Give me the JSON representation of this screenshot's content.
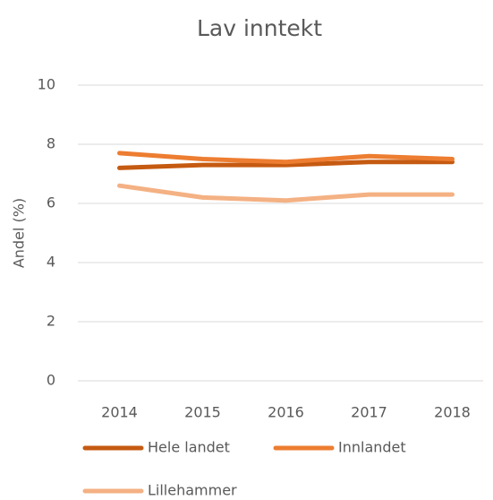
{
  "chart_data": {
    "type": "line",
    "title": "Lav inntekt",
    "y_label": "Andel (%)",
    "categories": [
      "2014",
      "2015",
      "2016",
      "2017",
      "2018"
    ],
    "series": [
      {
        "name": "Hele landet",
        "color": "#c55a11",
        "values": [
          7.2,
          7.3,
          7.3,
          7.4,
          7.4
        ]
      },
      {
        "name": "Innlandet",
        "color": "#ed7d31",
        "values": [
          7.7,
          7.5,
          7.4,
          7.6,
          7.5
        ]
      },
      {
        "name": "Lillehammer",
        "color": "#f4b183",
        "values": [
          6.6,
          6.2,
          6.1,
          6.3,
          6.3
        ]
      }
    ],
    "ylim": [
      0,
      10
    ],
    "yticks": [
      0,
      2,
      4,
      6,
      8,
      10
    ],
    "grid": true,
    "legend": "bottom"
  }
}
